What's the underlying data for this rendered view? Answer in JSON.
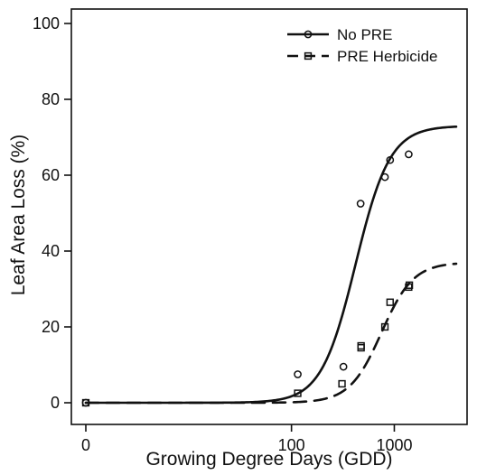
{
  "chart_data": {
    "type": "scatter",
    "xlabel": "Growing Degree Days (GDD)",
    "ylabel": "Leaf Area Loss (%)",
    "x_scale": "log",
    "x_range": [
      1,
      4000
    ],
    "y_range": [
      0,
      100
    ],
    "x_ticks": [
      {
        "value": 1,
        "label": "0"
      },
      {
        "value": 100,
        "label": "100"
      },
      {
        "value": 1000,
        "label": "1000"
      }
    ],
    "y_ticks": [
      {
        "value": 0,
        "label": "0"
      },
      {
        "value": 20,
        "label": "20"
      },
      {
        "value": 40,
        "label": "40"
      },
      {
        "value": 60,
        "label": "60"
      },
      {
        "value": 80,
        "label": "80"
      },
      {
        "value": 100,
        "label": "100"
      }
    ],
    "grid": false,
    "legend_position": "top-right",
    "series": [
      {
        "name": "No PRE",
        "marker": "circle",
        "line_style": "solid",
        "color": "#111111",
        "points": [
          {
            "x": 1,
            "y": 0
          },
          {
            "x": 115,
            "y": 7.5
          },
          {
            "x": 320,
            "y": 9.5
          },
          {
            "x": 470,
            "y": 52.5
          },
          {
            "x": 810,
            "y": 59.5
          },
          {
            "x": 910,
            "y": 64
          },
          {
            "x": 1380,
            "y": 65.5
          }
        ],
        "fit": {
          "model": "log-logistic",
          "upper": 73,
          "ec50": 420,
          "slope": 2.6
        }
      },
      {
        "name": "PRE Herbicide",
        "marker": "square",
        "line_style": "dashed",
        "color": "#111111",
        "points": [
          {
            "x": 1,
            "y": 0
          },
          {
            "x": 115,
            "y": 2.5
          },
          {
            "x": 310,
            "y": 5
          },
          {
            "x": 475,
            "y": 14.5
          },
          {
            "x": 475,
            "y": 15
          },
          {
            "x": 810,
            "y": 20
          },
          {
            "x": 910,
            "y": 26.5
          },
          {
            "x": 1380,
            "y": 30.5
          },
          {
            "x": 1400,
            "y": 31
          }
        ],
        "fit": {
          "model": "log-logistic",
          "upper": 37,
          "ec50": 750,
          "slope": 2.8
        }
      }
    ]
  }
}
